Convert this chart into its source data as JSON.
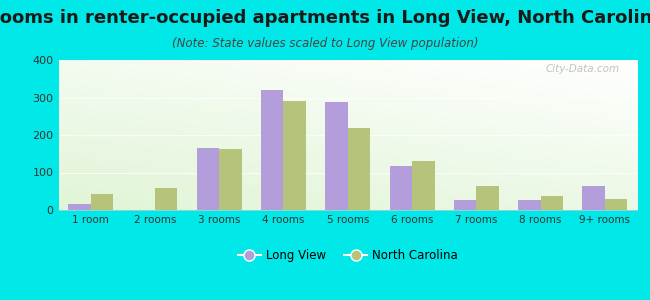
{
  "title": "Rooms in renter-occupied apartments in Long View, North Carolina",
  "subtitle": "(Note: State values scaled to Long View population)",
  "categories": [
    "1 room",
    "2 rooms",
    "3 rooms",
    "4 rooms",
    "5 rooms",
    "6 rooms",
    "7 rooms",
    "8 rooms",
    "9+ rooms"
  ],
  "longview_values": [
    15,
    0,
    165,
    320,
    288,
    118,
    28,
    27,
    65
  ],
  "nc_values": [
    42,
    58,
    163,
    290,
    220,
    132,
    65,
    38,
    30
  ],
  "longview_color": "#b39ddb",
  "nc_color": "#b5c47a",
  "background_color": "#00e8e8",
  "ylim": [
    0,
    400
  ],
  "yticks": [
    0,
    100,
    200,
    300,
    400
  ],
  "title_fontsize": 13,
  "subtitle_fontsize": 8.5,
  "watermark": "City-Data.com"
}
